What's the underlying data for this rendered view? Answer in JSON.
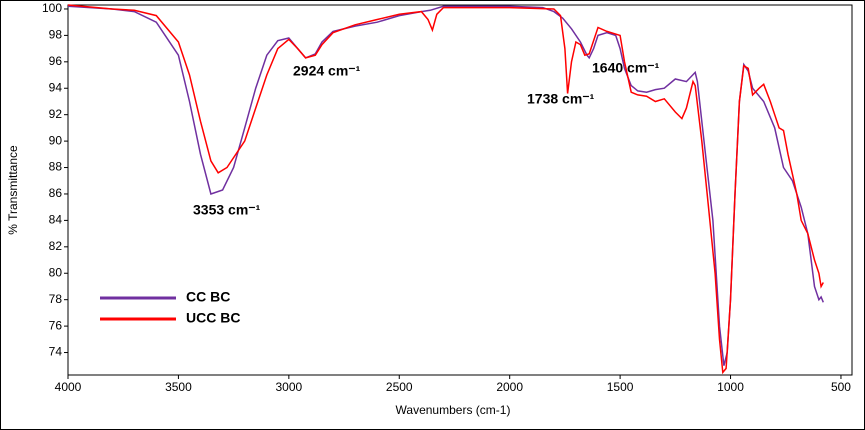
{
  "chart_data": {
    "type": "line",
    "xlabel": "Wavenumbers (cm-1)",
    "ylabel": "% Transmittance",
    "xlim": [
      4000,
      450
    ],
    "ylim": [
      72.3,
      100.3
    ],
    "xticks": [
      4000,
      3500,
      3000,
      2500,
      2000,
      1500,
      1000,
      500
    ],
    "yticks": [
      74,
      76,
      78,
      80,
      82,
      84,
      86,
      88,
      90,
      92,
      94,
      96,
      98,
      100
    ],
    "grid": false,
    "legend": "lower left",
    "annotations": [
      "3353 cm⁻¹",
      "2924 cm⁻¹",
      "1738 cm⁻¹",
      "1640 cm⁻¹"
    ],
    "series": [
      {
        "name": "CC BC",
        "color": "#7030a0",
        "x": [
          4000,
          3800,
          3700,
          3600,
          3500,
          3450,
          3400,
          3353,
          3300,
          3250,
          3200,
          3150,
          3100,
          3050,
          3000,
          2960,
          2924,
          2880,
          2850,
          2800,
          2700,
          2600,
          2500,
          2400,
          2360,
          2300,
          2000,
          1850,
          1800,
          1760,
          1720,
          1680,
          1650,
          1640,
          1620,
          1600,
          1560,
          1520,
          1500,
          1480,
          1450,
          1420,
          1380,
          1340,
          1300,
          1250,
          1200,
          1160,
          1150,
          1120,
          1080,
          1050,
          1030,
          1015,
          1000,
          980,
          960,
          940,
          920,
          900,
          850,
          800,
          760,
          720,
          680,
          650,
          620,
          600,
          590,
          580
        ],
        "values": [
          100.2,
          100,
          99.8,
          99,
          96.5,
          93,
          89,
          86,
          86.3,
          88,
          91,
          94,
          96.5,
          97.6,
          97.8,
          97,
          96.3,
          96.6,
          97.5,
          98.3,
          98.7,
          99,
          99.5,
          99.8,
          99.9,
          100.2,
          100.2,
          100.1,
          99.8,
          99.3,
          98.5,
          97.5,
          96.5,
          96.3,
          97,
          98,
          98.2,
          98,
          97,
          95.5,
          94.2,
          93.8,
          93.7,
          93.9,
          94,
          94.7,
          94.5,
          95.2,
          94.5,
          90,
          84,
          76,
          73,
          74,
          78,
          86,
          93,
          95.8,
          95.3,
          94,
          93,
          91,
          88,
          87,
          85,
          83,
          79,
          78,
          78.2,
          77.8
        ]
      },
      {
        "name": "UCC BC",
        "color": "#ff0000",
        "x": [
          4000,
          3800,
          3700,
          3600,
          3500,
          3450,
          3400,
          3353,
          3320,
          3280,
          3200,
          3150,
          3100,
          3050,
          3000,
          2960,
          2924,
          2880,
          2850,
          2800,
          2700,
          2600,
          2500,
          2400,
          2370,
          2350,
          2330,
          2300,
          2000,
          1800,
          1770,
          1750,
          1738,
          1720,
          1700,
          1680,
          1660,
          1640,
          1600,
          1560,
          1500,
          1480,
          1450,
          1420,
          1380,
          1340,
          1300,
          1250,
          1220,
          1200,
          1170,
          1160,
          1130,
          1100,
          1070,
          1050,
          1035,
          1020,
          1000,
          980,
          960,
          940,
          920,
          900,
          870,
          850,
          820,
          800,
          780,
          760,
          740,
          720,
          700,
          680,
          650,
          620,
          600,
          590,
          580
        ],
        "values": [
          100.3,
          100,
          99.9,
          99.5,
          97.5,
          95,
          91.5,
          88.5,
          87.6,
          88,
          90,
          92.5,
          95,
          97,
          97.7,
          97,
          96.3,
          96.5,
          97.3,
          98.2,
          98.8,
          99.2,
          99.6,
          99.8,
          99.2,
          98.4,
          99.6,
          100.1,
          100.1,
          100,
          99.5,
          97,
          93.6,
          96,
          97.5,
          97.3,
          96.5,
          96.6,
          98.6,
          98.3,
          98,
          96,
          93.7,
          93.5,
          93.4,
          93,
          93.2,
          92.2,
          91.7,
          92.5,
          94.5,
          94.2,
          90,
          85,
          80,
          75,
          72.5,
          72.8,
          78,
          86,
          93,
          95.7,
          95.5,
          93.5,
          94,
          94.3,
          93,
          92,
          91,
          90.8,
          89,
          87.5,
          86,
          84,
          83,
          81,
          80,
          79,
          79.3
        ]
      }
    ]
  }
}
